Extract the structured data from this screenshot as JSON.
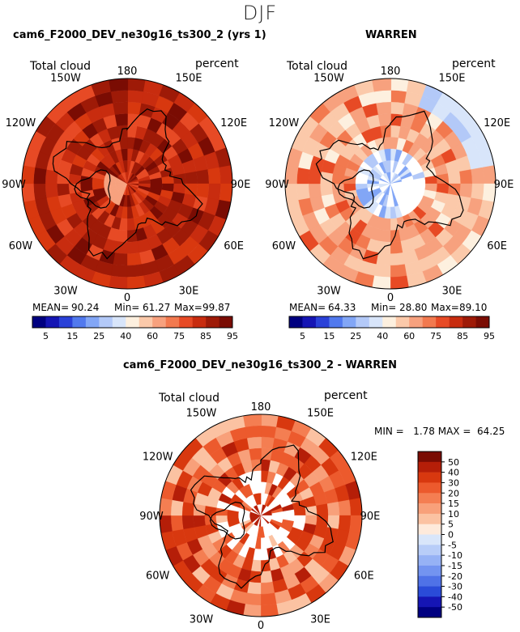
{
  "figure": {
    "suptitle": "DJF"
  },
  "panel1": {
    "title": "cam6_F2000_DEV_ne30g16_ts300_2 (yrs 1)",
    "left_label": "Total cloud",
    "right_label": "percent",
    "mean_label": "MEAN=",
    "mean_value": "90.24",
    "min_label": "Min=",
    "min_value": "61.27",
    "max_label": "Max=",
    "max_value": "99.87"
  },
  "panel2": {
    "title": "WARREN",
    "left_label": "Total cloud",
    "right_label": "percent",
    "mean_label": "MEAN=",
    "mean_value": "64.33",
    "min_label": "Min=",
    "min_value": "28.80",
    "max_label": "Max=",
    "max_value": "89.10"
  },
  "panel3": {
    "title": "cam6_F2000_DEV_ne30g16_ts300_2 - WARREN",
    "left_label": "Total cloud",
    "right_label": "percent",
    "minmax_text": "MIN =   1.78 MAX =  64.25"
  },
  "polar_labels": [
    "180",
    "150E",
    "120E",
    "90E",
    "60E",
    "30E",
    "0",
    "30W",
    "60W",
    "90W",
    "120W",
    "150W"
  ],
  "chart_data": [
    {
      "type": "heatmap",
      "title": "cam6_F2000_DEV_ne30g16_ts300_2 (yrs 1)",
      "variable": "Total cloud",
      "units": "percent",
      "projection": "north polar stereographic",
      "mean": 90.24,
      "min": 61.27,
      "max": 99.87,
      "colorbar": {
        "levels": [
          5,
          15,
          25,
          40,
          60,
          75,
          85,
          95
        ],
        "colors": [
          "#000080",
          "#1515b4",
          "#2a41d8",
          "#5179ee",
          "#82a6f6",
          "#b3c9f8",
          "#d8e5fa",
          "#fdf0df",
          "#fbc9aa",
          "#f7a17e",
          "#f2794f",
          "#e74a25",
          "#c82c0f",
          "#9e1a07",
          "#7a0c03"
        ]
      }
    },
    {
      "type": "heatmap",
      "title": "WARREN",
      "variable": "Total cloud",
      "units": "percent",
      "projection": "north polar stereographic",
      "mean": 64.33,
      "min": 28.8,
      "max": 89.1,
      "colorbar": {
        "levels": [
          5,
          15,
          25,
          40,
          60,
          75,
          85,
          95
        ],
        "colors": [
          "#000080",
          "#1515b4",
          "#2a41d8",
          "#5179ee",
          "#82a6f6",
          "#b3c9f8",
          "#d8e5fa",
          "#fdf0df",
          "#fbc9aa",
          "#f7a17e",
          "#f2794f",
          "#e74a25",
          "#c82c0f",
          "#9e1a07",
          "#7a0c03"
        ]
      }
    },
    {
      "type": "heatmap",
      "title": "cam6_F2000_DEV_ne30g16_ts300_2 - WARREN",
      "variable": "Total cloud",
      "units": "percent",
      "projection": "north polar stereographic",
      "min": 1.78,
      "max": 64.25,
      "colorbar": {
        "levels": [
          50,
          40,
          30,
          20,
          15,
          10,
          5,
          0,
          -5,
          -10,
          -15,
          -20,
          -30,
          -40,
          -50
        ],
        "colors": [
          "#7a0c03",
          "#b51e08",
          "#d8380f",
          "#ec5a2d",
          "#f47e52",
          "#f8a07a",
          "#fbc2a2",
          "#feeadb",
          "#d9e6fa",
          "#b8cdf8",
          "#96b2f5",
          "#7394f0",
          "#4f72e7",
          "#2a4bd8",
          "#1515b4",
          "#000080"
        ]
      }
    }
  ]
}
